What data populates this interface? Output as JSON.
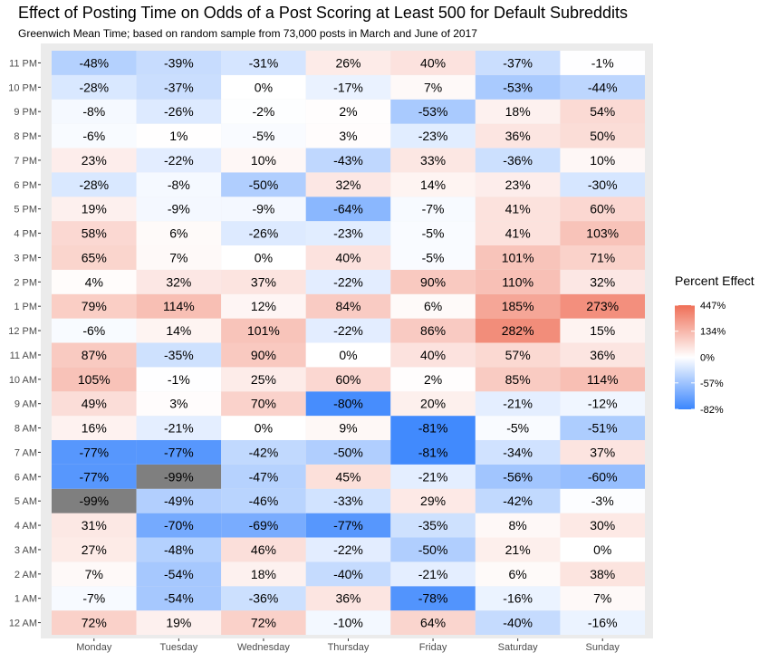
{
  "chart_data": {
    "type": "heatmap",
    "title": "Effect of Posting Time on Odds of a Post Scoring at Least 500 for Default Subreddits",
    "subtitle": "Greenwich Mean Time; based on random sample from 73,000 posts in March and June of 2017",
    "x_categories": [
      "Monday",
      "Tuesday",
      "Wednesday",
      "Thursday",
      "Friday",
      "Saturday",
      "Sunday"
    ],
    "y_categories": [
      "12 AM",
      "1 AM",
      "2 AM",
      "3 AM",
      "4 AM",
      "5 AM",
      "6 AM",
      "7 AM",
      "8 AM",
      "9 AM",
      "10 AM",
      "11 AM",
      "12 PM",
      "1 PM",
      "2 PM",
      "3 PM",
      "4 PM",
      "5 PM",
      "6 PM",
      "7 PM",
      "8 PM",
      "9 PM",
      "10 PM",
      "11 PM"
    ],
    "values": [
      [
        72,
        19,
        72,
        -10,
        64,
        -40,
        -16
      ],
      [
        -7,
        -54,
        -36,
        36,
        -78,
        -16,
        7
      ],
      [
        7,
        -54,
        18,
        -40,
        -21,
        6,
        38
      ],
      [
        27,
        -48,
        46,
        -22,
        -50,
        21,
        0
      ],
      [
        31,
        -70,
        -69,
        -77,
        -35,
        8,
        30
      ],
      [
        -99,
        -49,
        -46,
        -33,
        29,
        -42,
        -3
      ],
      [
        -77,
        -99,
        -47,
        45,
        -21,
        -56,
        -60
      ],
      [
        -77,
        -77,
        -42,
        -50,
        -81,
        -34,
        37
      ],
      [
        16,
        -21,
        0,
        9,
        -81,
        -5,
        -51
      ],
      [
        49,
        3,
        70,
        -80,
        20,
        -21,
        -12
      ],
      [
        105,
        -1,
        25,
        60,
        2,
        85,
        114
      ],
      [
        87,
        -35,
        90,
        0,
        40,
        57,
        36
      ],
      [
        -6,
        14,
        101,
        -22,
        86,
        282,
        15
      ],
      [
        79,
        114,
        12,
        84,
        6,
        185,
        273
      ],
      [
        4,
        32,
        37,
        -22,
        90,
        110,
        32
      ],
      [
        65,
        7,
        0,
        40,
        -5,
        101,
        71
      ],
      [
        58,
        6,
        -26,
        -23,
        -5,
        41,
        103
      ],
      [
        19,
        -9,
        -9,
        -64,
        -7,
        41,
        60
      ],
      [
        -28,
        -8,
        -50,
        32,
        14,
        23,
        -30
      ],
      [
        23,
        -22,
        10,
        -43,
        33,
        -36,
        10
      ],
      [
        -6,
        1,
        -5,
        3,
        -23,
        36,
        50
      ],
      [
        -8,
        -26,
        -2,
        2,
        -53,
        18,
        54
      ],
      [
        -28,
        -37,
        0,
        -17,
        7,
        -53,
        -44
      ],
      [
        -48,
        -39,
        -31,
        26,
        40,
        -37,
        -1
      ]
    ],
    "na_color": "#7f7f7f",
    "na_threshold": -99,
    "low_color": "#3b86fd",
    "mid_color": "#ffffff",
    "high_color": "#ef6f57",
    "legend": {
      "title": "Percent Effect",
      "position": "right",
      "breaks": [
        447,
        134,
        0,
        -57,
        -82
      ],
      "labels": [
        "447%",
        "134%",
        "0%",
        "-57%",
        "-82%"
      ]
    }
  }
}
